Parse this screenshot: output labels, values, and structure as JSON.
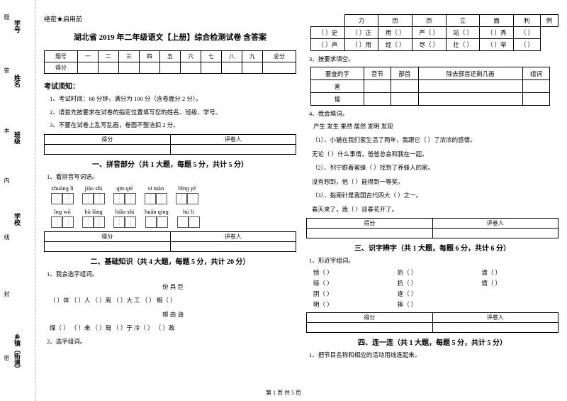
{
  "secret": "绝密★启用前",
  "page_title": "湖北省 2019 年二年级语文【上册】综合检测试卷 含答案",
  "score_row_labels": [
    "题号",
    "得分"
  ],
  "score_cols": [
    "一",
    "二",
    "三",
    "四",
    "五",
    "六",
    "七",
    "八",
    "九",
    "总分"
  ],
  "notice_title": "考试须知：",
  "notices": [
    "1、考试时间：60 分钟，满分为 100 分（含卷面分 2 分）。",
    "2、请首先按要求在试卷的指定位置填写您的姓名、班级、学号。",
    "3、不要在试卷上乱写乱画，卷面不整洁扣 2 分。"
  ],
  "grader_labels": [
    "得分",
    "评卷人"
  ],
  "sections": {
    "s1": "一、拼音部分（共 1 大题，每题 5 分，共计 5 分）",
    "s2": "二、基础知识（共 4 大题，每题 5 分，共计 20 分）",
    "s3": "三、识字辨字（共 1 大题，每题 6 分，共计 6 分）",
    "s4": "四、连一连（共 1 大题，每题 5 分，共计 5 分）"
  },
  "q": {
    "q1_1": "1、看拼音写词语。",
    "q2_1": "1、我会选字组词。",
    "q2_2": "2、选字组词。",
    "q2_3": "3、按要求填空。",
    "q2_4": "4、我会填词。",
    "q3_1": "1、形近字组词。",
    "q4_1": "1、把节目名称和相应的活动用线连起来。"
  },
  "pinyin_row1": [
    {
      "py": "zhuànɡ lì",
      "n": 2
    },
    {
      "py": "jiào shì",
      "n": 2
    },
    {
      "py": "qīn qiè",
      "n": 2
    },
    {
      "py": "sī niàn",
      "n": 2
    },
    {
      "py": "fēnɡ yè",
      "n": 2
    }
  ],
  "pinyin_row2": [
    {
      "py": "ǐnɡ wō",
      "n": 2
    },
    {
      "py": "bō lànɡ",
      "n": 2
    },
    {
      "py": "biǎo shì",
      "n": 2
    },
    {
      "py": "huān qìnɡ",
      "n": 2
    },
    {
      "py": "hú li",
      "n": 2
    }
  ],
  "choose1_head": "份      具      巨",
  "choose1_lines": [
    "（   ）体  （   ）人  （   ）离  （   ）大   工  （   ）  相（   ）",
    "                邮       由       油",
    "煤（   ）     （   ）来    （   ）局   （   ）于    冷（   ）    （   ）政"
  ],
  "hanzi_header": [
    "",
    "力",
    "历",
    "历",
    "立",
    "面",
    "利",
    "例"
  ],
  "hanzi_rows": [
    [
      "（  ）史",
      "（  ）正",
      "用（  ）",
      "严（  ）",
      "站（  ）",
      "（  ）秀",
      "（  ）"
    ],
    [
      "（  ）声",
      "（  ）用",
      "经（  ）",
      "尽（  ）",
      "壮（  ）",
      "（  ）举",
      "（  ）"
    ]
  ],
  "lookup_header": [
    "要查的字",
    "音节",
    "部首",
    "除去部首还剩几画",
    "组词"
  ],
  "lookup_rows": [
    [
      "害",
      "",
      "",
      "",
      ""
    ],
    [
      "慢",
      "",
      "",
      "",
      ""
    ]
  ],
  "fillwords_bank": "产生   发生     果然     居然     发明   发现",
  "fillwords": [
    "（1）、小猫在我们家生活了两年，我跟它（     ）了浓浓的感情。",
    "         无论（     ）什么事情，爸爸总会和我在一起。",
    "（2）、列宁跟着蜜蜂（     ）找到了养蜂人的家。",
    "         没有想到，他（     ）能得到一等奖。",
    "（3）、指南针是我国古代四大（     ）之一。",
    "         春天来了，我（     ）迎春花开了。"
  ],
  "pairs": [
    [
      "惊（     ）",
      "奶（     ）",
      "清（     ）"
    ],
    [
      "晾（     ）",
      "扔（     ）",
      "情（     ）"
    ],
    [
      "阴（     ）",
      "逐（     ）",
      ""
    ],
    [
      "明（     ）",
      "摔（     ）",
      ""
    ]
  ],
  "footer": "第 1 页 共 5 页",
  "margin": {
    "m1": "学号",
    "m2": "姓名",
    "m3": "班级",
    "m4": "学校",
    "m5": "乡镇（街道）",
    "t1": "题",
    "t2": "答",
    "t3": "本",
    "t4": "内",
    "t5": "线",
    "t6": "封",
    "t7": "密"
  }
}
